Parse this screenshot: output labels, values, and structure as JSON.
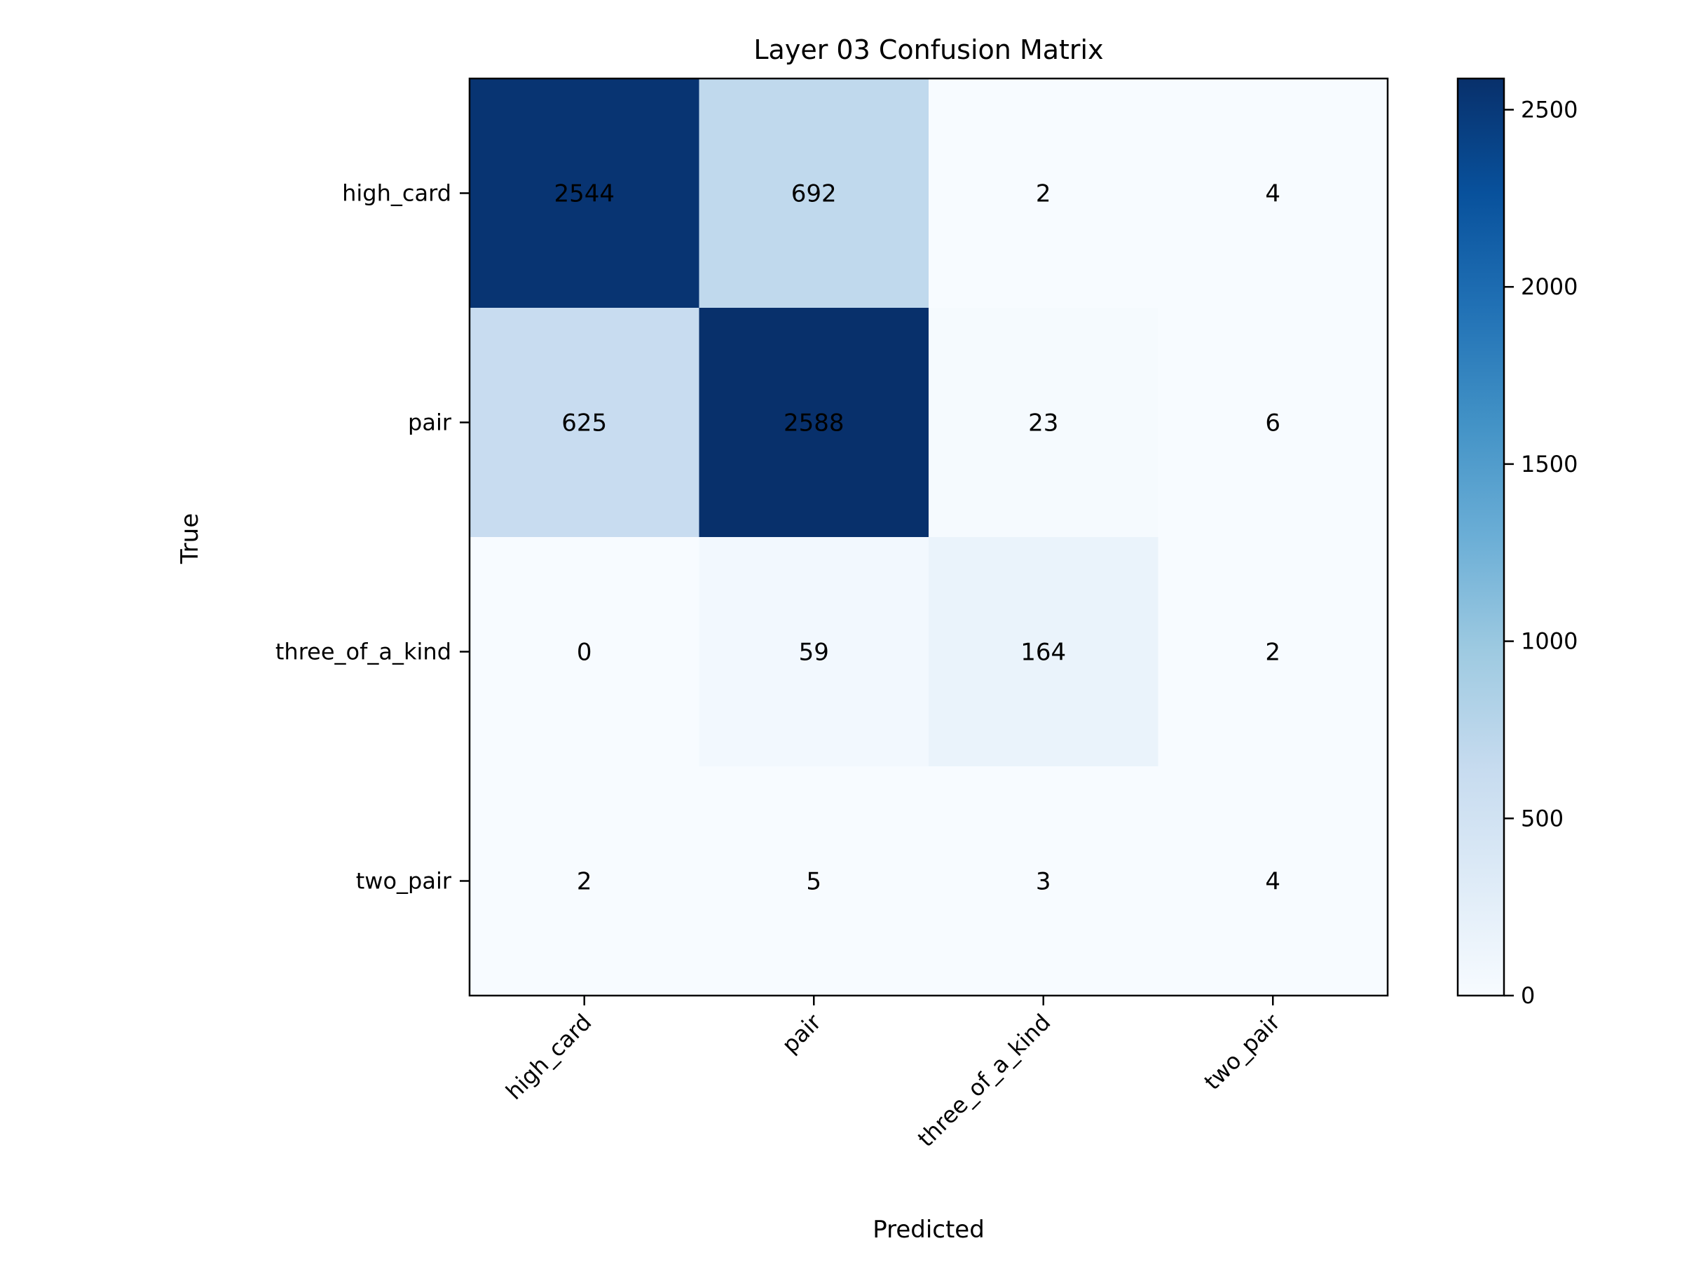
{
  "chart_data": {
    "type": "heatmap",
    "title": "Layer 03 Confusion Matrix",
    "xlabel": "Predicted",
    "ylabel": "True",
    "x_categories": [
      "high_card",
      "pair",
      "three_of_a_kind",
      "two_pair"
    ],
    "y_categories": [
      "high_card",
      "pair",
      "three_of_a_kind",
      "two_pair"
    ],
    "values": [
      [
        2544,
        692,
        2,
        4
      ],
      [
        625,
        2588,
        23,
        6
      ],
      [
        0,
        59,
        164,
        2
      ],
      [
        2,
        5,
        3,
        4
      ]
    ],
    "colormap": "Blues",
    "color_range": [
      0,
      2588
    ],
    "colorbar_ticks": [
      0,
      500,
      1000,
      1500,
      2000,
      2500
    ],
    "colorbar_tick_labels": [
      "0",
      "500",
      "1000",
      "1500",
      "2000",
      "2500"
    ],
    "grid": false,
    "colors": {
      "low": "#f7fbff",
      "high": "#08306b",
      "text": "#000000"
    }
  }
}
